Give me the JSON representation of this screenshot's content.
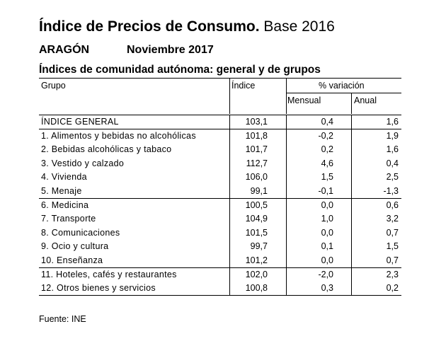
{
  "title": {
    "bold": "Índice de Precios de Consumo.",
    "normal": "Base 2016"
  },
  "subtitle": {
    "region": "ARAGÓN",
    "period": "Noviembre 2017"
  },
  "section_title": "Índices de comunidad autónoma: general y de grupos",
  "table": {
    "headers": {
      "grupo": "Grupo",
      "indice": "Índice",
      "variacion": "% variación",
      "mensual": "Mensual",
      "anual": "Anual"
    },
    "rows": [
      {
        "name": "ÍNDICE GENERAL",
        "indice": "103,1",
        "mensual": "0,4",
        "anual": "1,6"
      },
      {
        "name": "1. Alimentos y bebidas no alcohólicas",
        "indice": "101,8",
        "mensual": "-0,2",
        "anual": "1,9"
      },
      {
        "name": "2. Bebidas alcohólicas y tabaco",
        "indice": "101,7",
        "mensual": "0,2",
        "anual": "1,6"
      },
      {
        "name": "3. Vestido y calzado",
        "indice": "112,7",
        "mensual": "4,6",
        "anual": "0,4"
      },
      {
        "name": "4. Vivienda",
        "indice": "106,0",
        "mensual": "1,5",
        "anual": "2,5"
      },
      {
        "name": "5. Menaje",
        "indice": "99,1",
        "mensual": "-0,1",
        "anual": "-1,3"
      },
      {
        "name": "6. Medicina",
        "indice": "100,5",
        "mensual": "0,0",
        "anual": "0,6"
      },
      {
        "name": "7. Transporte",
        "indice": "104,9",
        "mensual": "1,0",
        "anual": "3,2"
      },
      {
        "name": "8. Comunicaciones",
        "indice": "101,5",
        "mensual": "0,0",
        "anual": "0,7"
      },
      {
        "name": "9. Ocio y cultura",
        "indice": "99,7",
        "mensual": "0,1",
        "anual": "1,5"
      },
      {
        "name": "10. Enseñanza",
        "indice": "101,2",
        "mensual": "0,0",
        "anual": "0,7"
      },
      {
        "name": "11. Hoteles, cafés y restaurantes",
        "indice": "102,0",
        "mensual": "-2,0",
        "anual": "2,3"
      },
      {
        "name": "12. Otros bienes y servicios",
        "indice": "100,8",
        "mensual": "0,3",
        "anual": "0,2"
      }
    ]
  },
  "source": "Fuente: INE"
}
